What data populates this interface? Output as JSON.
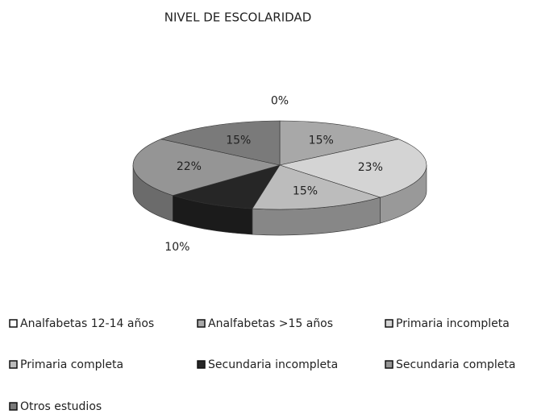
{
  "chart_data": {
    "type": "pie",
    "title": "NIVEL DE ESCOLARIDAD",
    "categories": [
      "Analfabetas 12-14 años",
      "Analfabetas >15 años",
      "Primaria incompleta",
      "Primaria completa",
      "Secundaria incompleta",
      "Secundaria completa",
      "Otros estudios"
    ],
    "values": [
      0,
      15,
      23,
      15,
      10,
      22,
      15
    ],
    "value_labels": [
      "0%",
      "15%",
      "23%",
      "15%",
      "10%",
      "22%",
      "15%"
    ],
    "colors": [
      "#ffffff",
      "#a8a8a8",
      "#d4d4d4",
      "#bcbcbc",
      "#262626",
      "#959595",
      "#7a7a7a"
    ],
    "legend": "bottom"
  }
}
